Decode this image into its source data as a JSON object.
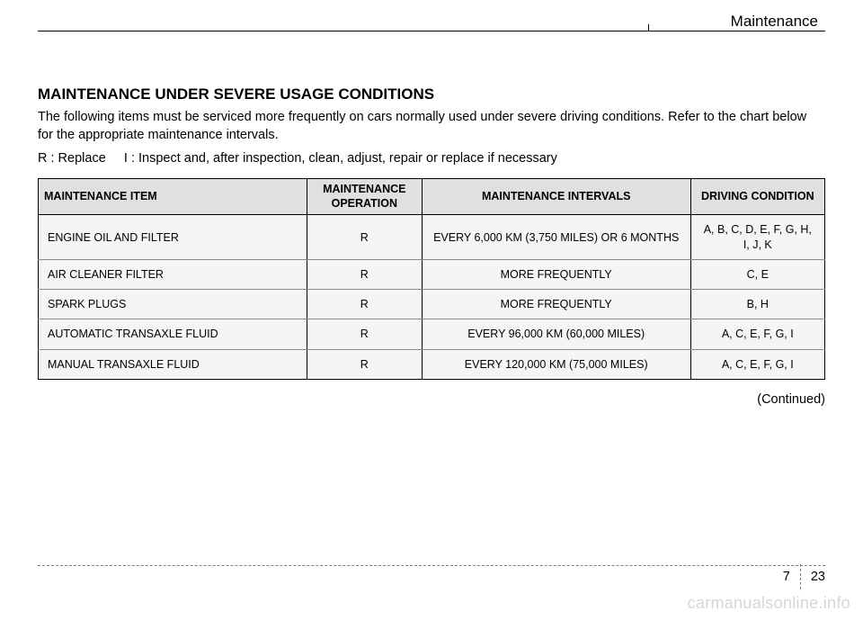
{
  "header": {
    "section_title": "Maintenance"
  },
  "content": {
    "main_heading": "MAINTENANCE UNDER SEVERE USAGE CONDITIONS",
    "intro_text": "The following items must be serviced more frequently on cars normally used under severe driving conditions. Refer to the chart below for the appropriate maintenance intervals.",
    "legend_text": "R : Replace     I : Inspect and, after inspection, clean, adjust, repair or replace if necessary",
    "continued_text": "(Continued)"
  },
  "table": {
    "columns": [
      "MAINTENANCE ITEM",
      "MAINTENANCE OPERATION",
      "MAINTENANCE INTERVALS",
      "DRIVING CONDITION"
    ],
    "rows": [
      {
        "item": "ENGINE OIL AND FILTER",
        "op": "R",
        "interval": "EVERY 6,000 KM (3,750 MILES) OR 6 MONTHS",
        "cond": "A, B, C, D, E, F, G, H, I, J, K"
      },
      {
        "item": "AIR CLEANER FILTER",
        "op": "R",
        "interval": "MORE FREQUENTLY",
        "cond": "C, E"
      },
      {
        "item": "SPARK PLUGS",
        "op": "R",
        "interval": "MORE FREQUENTLY",
        "cond": "B, H"
      },
      {
        "item": "AUTOMATIC TRANSAXLE FLUID",
        "op": "R",
        "interval": "EVERY 96,000 KM (60,000 MILES)",
        "cond": "A, C, E, F, G, I"
      },
      {
        "item": "MANUAL TRANSAXLE FLUID",
        "op": "R",
        "interval": "EVERY 120,000 KM (75,000 MILES)",
        "cond": "A, C, E, F, G, I"
      }
    ]
  },
  "footer": {
    "chapter": "7",
    "page": "23"
  },
  "watermark": "carmanualsonline.info"
}
